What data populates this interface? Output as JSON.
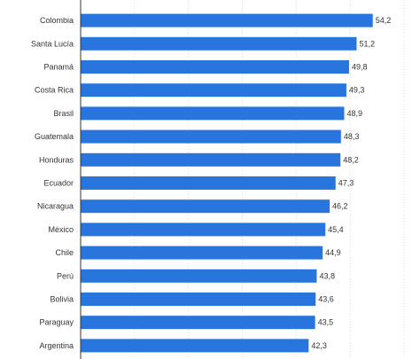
{
  "chart_data": {
    "type": "bar",
    "orientation": "horizontal",
    "categories": [
      "Colombia",
      "Santa Lucía",
      "Panamá",
      "Costa Rica",
      "Brasil",
      "Guatemala",
      "Honduras",
      "Ecuador",
      "Nicaragua",
      "México",
      "Chile",
      "Perú",
      "Bolivia",
      "Paraguay",
      "Argentina"
    ],
    "values": [
      54.2,
      51.2,
      49.8,
      49.3,
      48.9,
      48.3,
      48.2,
      47.3,
      46.2,
      45.4,
      44.9,
      43.8,
      43.6,
      43.5,
      42.3
    ],
    "value_labels": [
      "54,2",
      "51,2",
      "49,8",
      "49,3",
      "48,9",
      "48,3",
      "48,2",
      "47,3",
      "46,2",
      "45,4",
      "44,9",
      "43,8",
      "43,6",
      "43,5",
      "42,3"
    ],
    "title": "",
    "xlabel": "",
    "ylabel": "",
    "xlim": [
      0,
      60
    ],
    "grid": true,
    "legend": "none",
    "colors": {
      "bar": "#2876dd",
      "grid": "#dcdcdc",
      "axis": "#333333",
      "text": "#333333"
    }
  }
}
